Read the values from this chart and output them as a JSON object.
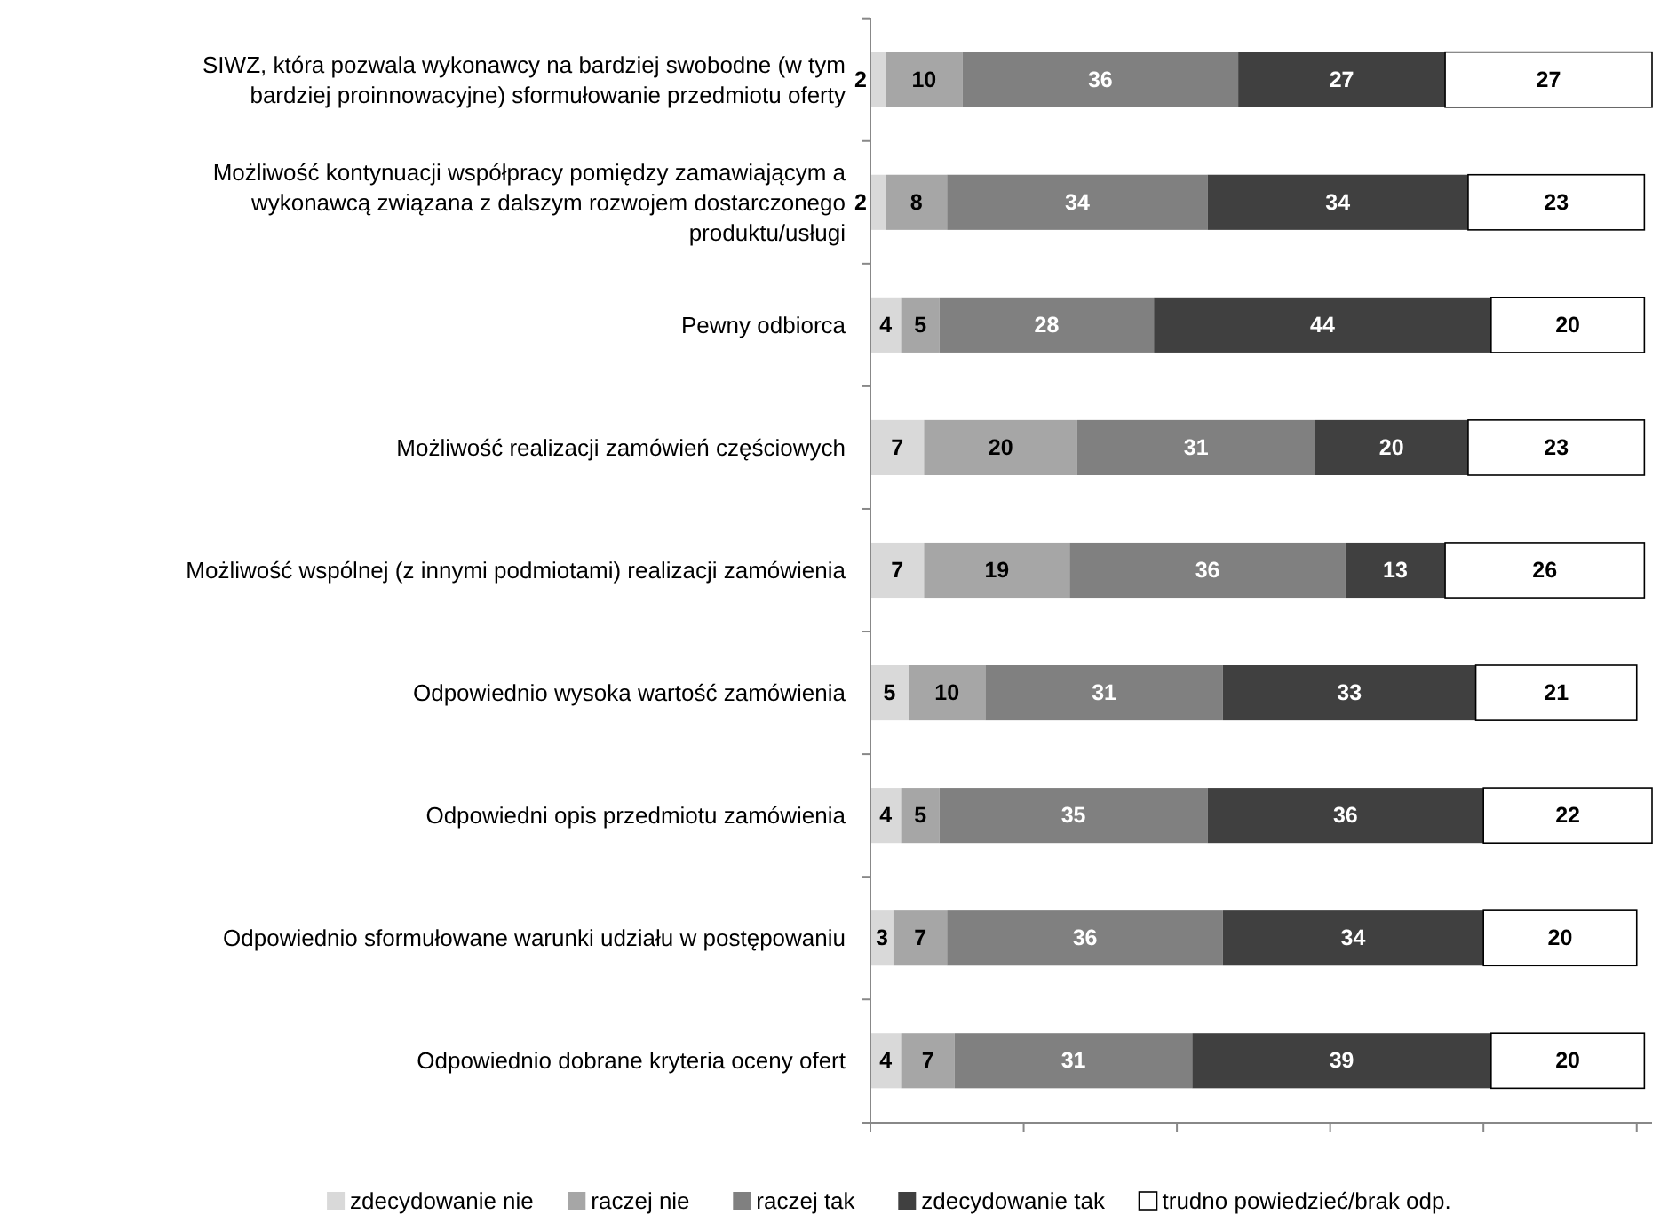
{
  "chart_data": {
    "type": "bar",
    "orientation": "horizontal",
    "stacked": true,
    "data_labels": true,
    "legend": "bottom",
    "tick_labels": "y",
    "grid": false,
    "categories": [
      "SIWZ, która pozwala wykonawcy na bardziej swobodne (w tym bardziej proinnowacyjne) sformułowanie przedmiotu oferty",
      "Możliwość kontynuacji współpracy pomiędzy zamawiającym a wykonawcą związana z dalszym rozwojem dostarczonego produktu/usługi",
      "Pewny odbiorca",
      "Możliwość realizacji zamówień częściowych",
      "Możliwość wspólnej (z innymi podmiotami) realizacji zamówienia",
      "Odpowiednio wysoka wartość zamówienia",
      "Odpowiedni opis przedmiotu zamówienia",
      "Odpowiednio sformułowane warunki udziału w postępowaniu",
      "Odpowiednio dobrane kryteria oceny ofert"
    ],
    "xlim": [
      0,
      102
    ],
    "xticks": [
      {
        "value": 0,
        "label": null
      },
      {
        "value": 20,
        "label": null
      },
      {
        "value": 40,
        "label": null
      },
      {
        "value": 60,
        "label": null
      },
      {
        "value": 80,
        "label": null
      },
      {
        "value": 100,
        "label": null
      }
    ],
    "series": [
      {
        "name": "zdecydowanie nie",
        "color": "#d9d9d9",
        "values": [
          2,
          2,
          4,
          7,
          7,
          5,
          4,
          3,
          4
        ]
      },
      {
        "name": "raczej nie",
        "color": "#a6a6a6",
        "values": [
          10,
          8,
          5,
          20,
          19,
          10,
          5,
          7,
          7
        ]
      },
      {
        "name": "raczej tak",
        "color": "#808080",
        "values": [
          36,
          34,
          28,
          31,
          36,
          31,
          35,
          36,
          31
        ]
      },
      {
        "name": "zdecydowanie tak",
        "color": "#404040",
        "values": [
          27,
          34,
          44,
          20,
          13,
          33,
          36,
          34,
          39
        ]
      },
      {
        "name": "trudno powiedzieć/brak odp.",
        "color": "#ffffff",
        "values": [
          27,
          23,
          20,
          23,
          26,
          21,
          22,
          20,
          20
        ]
      }
    ]
  }
}
